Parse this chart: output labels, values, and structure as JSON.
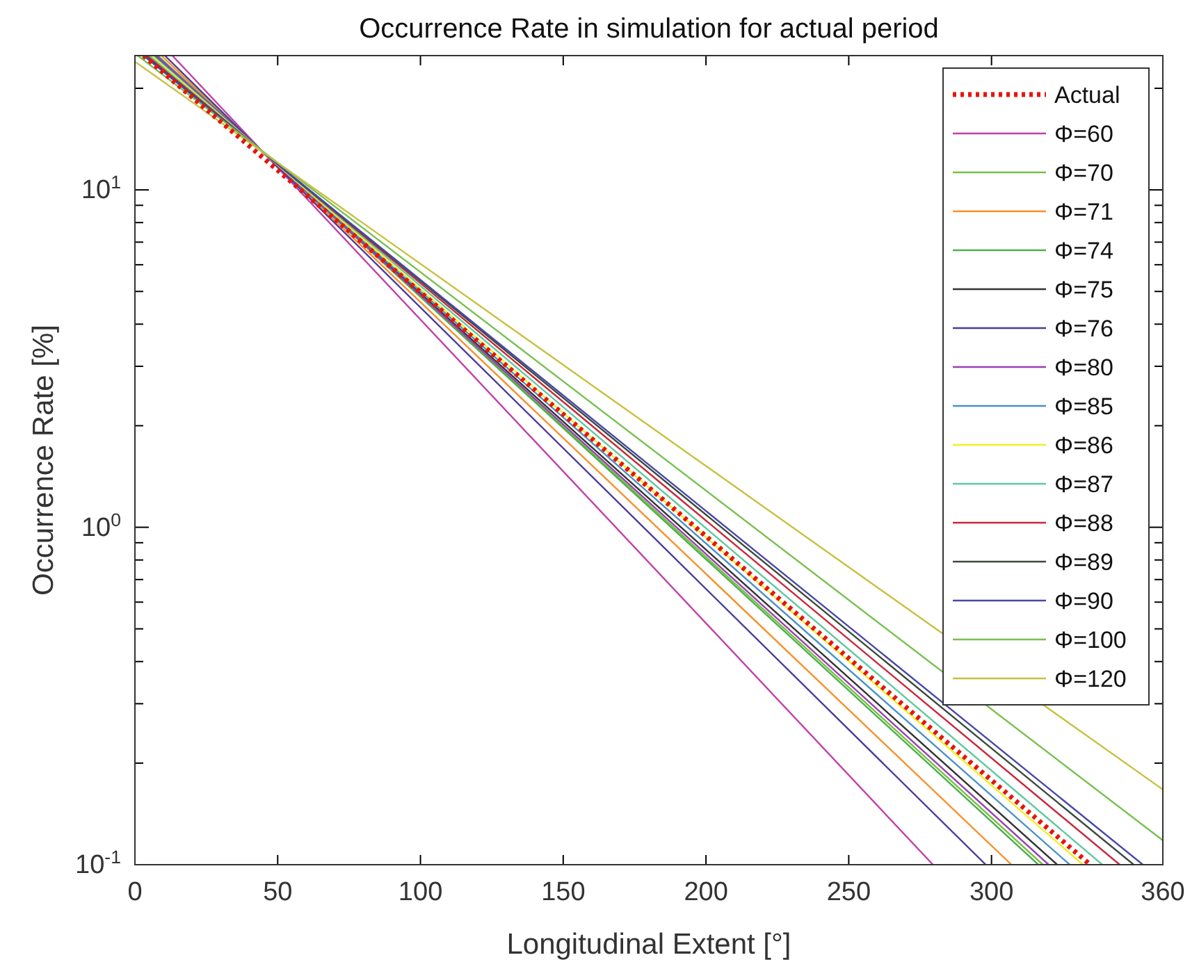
{
  "chart_data": {
    "type": "line",
    "title": "Occurrence Rate in simulation for actual period",
    "xlabel": "Longitudinal Extent [°]",
    "ylabel": "Occurrence Rate [%]",
    "log": "y",
    "grid": false,
    "legend": "top right",
    "marker": "none",
    "line_style": "solid",
    "xlim": [
      0,
      360
    ],
    "xticks": [
      0,
      50,
      100,
      150,
      200,
      250,
      300,
      360
    ],
    "ylim": [
      0.1,
      25
    ],
    "yticks": [
      {
        "value": 0.1,
        "label": "10$^{-1}$"
      },
      {
        "value": 0.2,
        "label": null
      },
      {
        "value": 0.3,
        "label": null
      },
      {
        "value": 0.4,
        "label": null
      },
      {
        "value": 0.5,
        "label": null
      },
      {
        "value": 0.6,
        "label": null
      },
      {
        "value": 0.7,
        "label": null
      },
      {
        "value": 0.8,
        "label": null
      },
      {
        "value": 0.9,
        "label": null
      },
      {
        "value": 1,
        "label": "10$^{0}$"
      },
      {
        "value": 2,
        "label": null
      },
      {
        "value": 3,
        "label": null
      },
      {
        "value": 4,
        "label": null
      },
      {
        "value": 5,
        "label": null
      },
      {
        "value": 6,
        "label": null
      },
      {
        "value": 7,
        "label": null
      },
      {
        "value": 8,
        "label": null
      },
      {
        "value": 9,
        "label": null
      },
      {
        "value": 10,
        "label": "10$^{1}$"
      },
      {
        "value": 20,
        "label": null
      }
    ],
    "series": [
      {
        "name": "Actual",
        "color": "#e8140c",
        "line_style": "dotted",
        "x": [
          3,
          334.6
        ],
        "values": [
          25,
          0.1
        ]
      },
      {
        "name": "Φ=60",
        "color": "#c040a8",
        "x": [
          13.1,
          279.5
        ],
        "values": [
          25,
          0.1
        ]
      },
      {
        "name": "Φ=70",
        "color": "#77c043",
        "x": [
          7.8,
          318
        ],
        "values": [
          25,
          0.1
        ]
      },
      {
        "name": "Φ=71",
        "color": "#f7902a",
        "x": [
          9.3,
          307
        ],
        "values": [
          25,
          0.1
        ]
      },
      {
        "name": "Φ=74",
        "color": "#4daf4a",
        "x": [
          8,
          316.4
        ],
        "values": [
          25,
          0.1
        ]
      },
      {
        "name": "Φ=75",
        "color": "#333333",
        "x": [
          7.1,
          323
        ],
        "values": [
          25,
          0.1
        ]
      },
      {
        "name": "Φ=76",
        "color": "#4b3b9a",
        "x": [
          10.5,
          298
        ],
        "values": [
          25,
          0.1
        ]
      },
      {
        "name": "Φ=80",
        "color": "#9a3fb5",
        "x": [
          7.5,
          320
        ],
        "values": [
          25,
          0.1
        ]
      },
      {
        "name": "Φ=85",
        "color": "#4a90c8",
        "x": [
          6.5,
          327.4
        ],
        "values": [
          25,
          0.1
        ]
      },
      {
        "name": "Φ=86",
        "color": "#f0f020",
        "x": [
          5.9,
          332
        ],
        "values": [
          25,
          0.1
        ]
      },
      {
        "name": "Φ=87",
        "color": "#5ec9a0",
        "x": [
          5,
          338.8
        ],
        "values": [
          25,
          0.1
        ]
      },
      {
        "name": "Φ=88",
        "color": "#c8283c",
        "x": [
          4.2,
          344.9
        ],
        "values": [
          25,
          0.1
        ]
      },
      {
        "name": "Φ=89",
        "color": "#3c4a3c",
        "x": [
          3.5,
          349.8
        ],
        "values": [
          25,
          0.1
        ]
      },
      {
        "name": "Φ=90",
        "color": "#4848a8",
        "x": [
          3,
          353
        ],
        "values": [
          25,
          0.1
        ]
      },
      {
        "name": "Φ=100",
        "color": "#78c050",
        "x": [
          1,
          360
        ],
        "values": [
          25,
          0.118
        ]
      },
      {
        "name": "Φ=120",
        "color": "#c8c040",
        "x": [
          0,
          360
        ],
        "values": [
          24,
          0.167
        ]
      }
    ]
  }
}
